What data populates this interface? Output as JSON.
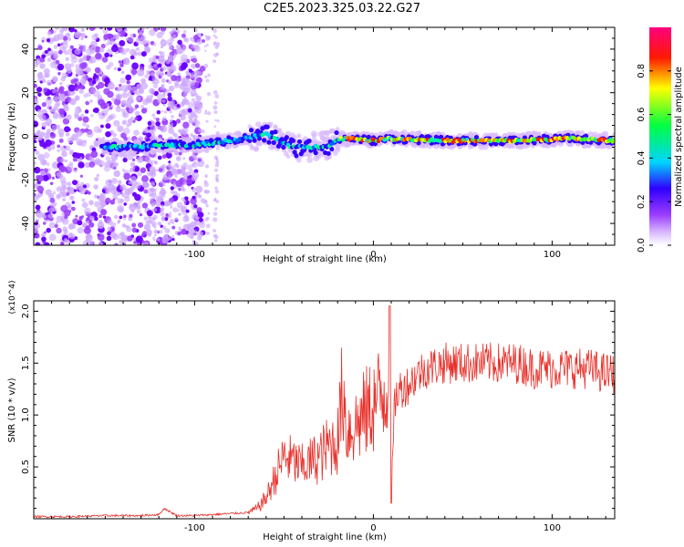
{
  "title": "C2E5.2023.325.03.22.G27",
  "chart_data": [
    {
      "type": "heatmap",
      "title": "C2E5.2023.325.03.22.G27",
      "xlabel": "Height of straight line (km)",
      "ylabel": "Frequency (Hz)",
      "xlim": [
        -190,
        135
      ],
      "ylim": [
        -50,
        50
      ],
      "x_ticks": [
        -100,
        0,
        100
      ],
      "x_tick_labels": [
        "-100",
        "0",
        "100"
      ],
      "y_ticks": [
        -40,
        -20,
        0,
        20,
        40
      ],
      "y_tick_labels": [
        "-40",
        "-20",
        "0",
        "20",
        "40"
      ],
      "colorbar": {
        "label": "Normalized spectral amplitude",
        "range": [
          0,
          1
        ],
        "ticks": [
          0.0,
          0.2,
          0.4,
          0.6,
          0.8
        ],
        "tick_labels": [
          "0.0",
          "0.2",
          "0.4",
          "0.6",
          "0.8"
        ],
        "colors": [
          "#ffffff",
          "#9b3dff",
          "#3000ff",
          "#00d4ff",
          "#00ff40",
          "#ffff00",
          "#ff1a00",
          "#ff0080"
        ]
      },
      "ridge": {
        "description_points": [
          {
            "x": -150,
            "y": -5
          },
          {
            "x": -135,
            "y": -5
          },
          {
            "x": -120,
            "y": -4
          },
          {
            "x": -100,
            "y": -4
          },
          {
            "x": -80,
            "y": -2
          },
          {
            "x": -60,
            "y": 1
          },
          {
            "x": -50,
            "y": -3
          },
          {
            "x": -45,
            "y": -5
          },
          {
            "x": -35,
            "y": -5
          },
          {
            "x": -25,
            "y": -4
          },
          {
            "x": -18,
            "y": -1
          },
          {
            "x": -10,
            "y": -1
          },
          {
            "x": 0,
            "y": -2
          },
          {
            "x": 10,
            "y": -1
          },
          {
            "x": 40,
            "y": -2
          },
          {
            "x": 80,
            "y": -2
          },
          {
            "x": 110,
            "y": -1
          },
          {
            "x": 135,
            "y": -2
          }
        ]
      },
      "grid": false
    },
    {
      "type": "line",
      "xlabel": "Height of straight line (km)",
      "ylabel": "SNR (10 * v/v)",
      "y_multiplier": "(x10^4)",
      "xlim": [
        -190,
        135
      ],
      "ylim": [
        0,
        2.1
      ],
      "x_ticks": [
        -100,
        0,
        100
      ],
      "x_tick_labels": [
        "-100",
        "0",
        "100"
      ],
      "y_ticks": [
        0.5,
        1.0,
        1.5,
        2.0
      ],
      "y_tick_labels": [
        "0.5",
        "1.0",
        "1.5",
        "2.0"
      ],
      "color": "#e8302a",
      "series": [
        {
          "x": [
            -190,
            -170,
            -150,
            -130,
            -120,
            -117,
            -110,
            -100,
            -90,
            -80,
            -70,
            -65,
            -60,
            -55,
            -50,
            -45,
            -40,
            -35,
            -30,
            -25,
            -20,
            -17,
            -15,
            -10,
            -5,
            0,
            5,
            8,
            9,
            10,
            12,
            15,
            20,
            25,
            30,
            40,
            50,
            60,
            70,
            80,
            90,
            100,
            110,
            120,
            130,
            135
          ],
          "values": [
            0.02,
            0.02,
            0.03,
            0.03,
            0.04,
            0.1,
            0.03,
            0.03,
            0.04,
            0.05,
            0.06,
            0.1,
            0.2,
            0.4,
            0.6,
            0.55,
            0.5,
            0.55,
            0.6,
            0.7,
            0.75,
            1.3,
            0.85,
            0.9,
            1.0,
            1.1,
            1.2,
            1.3,
            2.05,
            0.15,
            1.15,
            1.25,
            1.3,
            1.4,
            1.45,
            1.5,
            1.5,
            1.5,
            1.5,
            1.5,
            1.45,
            1.45,
            1.45,
            1.45,
            1.4,
            1.4
          ]
        }
      ],
      "grid": false
    }
  ]
}
